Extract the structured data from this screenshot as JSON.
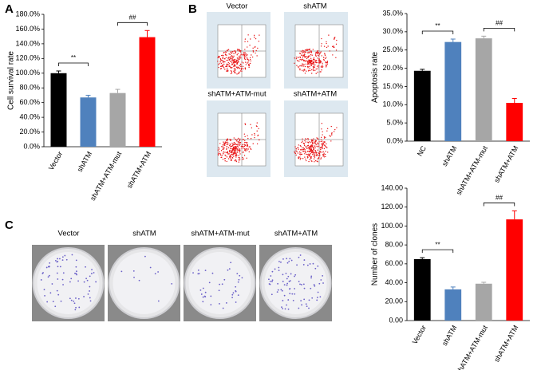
{
  "panel_labels": [
    "A",
    "B",
    "C"
  ],
  "flow_panels": {
    "titles": [
      "Vector",
      "shATM",
      "shATM+ATM-mut",
      "shATM+ATM"
    ]
  },
  "colony_plates": {
    "titles": [
      "Vector",
      "shATM",
      "shATM+ATM-mut",
      "shATM+ATM"
    ]
  },
  "chart_data": [
    {
      "type": "bar",
      "y_label": "Cell survival rate",
      "categories": [
        "Vector",
        "shATM",
        "shATM+ATM-mut",
        "shATM+ATM"
      ],
      "values": [
        100,
        67,
        73,
        149
      ],
      "errors": [
        3,
        3,
        5,
        9
      ],
      "colors": [
        "#000000",
        "#4f81bd",
        "#a6a6a6",
        "#ff0000"
      ],
      "ylim": [
        0,
        180
      ],
      "yticks": [
        {
          "value": 0,
          "label": "0.0%"
        },
        {
          "value": 20,
          "label": "20.0%"
        },
        {
          "value": 40,
          "label": "40.0%"
        },
        {
          "value": 60,
          "label": "60.0%"
        },
        {
          "value": 80,
          "label": "80.0%"
        },
        {
          "value": 100,
          "label": "100.0%"
        },
        {
          "value": 120,
          "label": "120.0%"
        },
        {
          "value": 140,
          "label": "140.0%"
        },
        {
          "value": 160,
          "label": "160.0%"
        },
        {
          "value": 180,
          "label": "180.0%"
        }
      ],
      "annotations": [
        "**",
        "##"
      ]
    },
    {
      "type": "bar",
      "y_label": "Apoptosis rate",
      "categories": [
        "NC",
        "shATM",
        "shATM+ATM-mut",
        "shATM+ATM"
      ],
      "values": [
        19.3,
        27.2,
        28.2,
        10.5
      ],
      "errors": [
        0.4,
        0.8,
        0.6,
        1.2
      ],
      "colors": [
        "#000000",
        "#4f81bd",
        "#a6a6a6",
        "#ff0000"
      ],
      "ylim": [
        0,
        35
      ],
      "yticks": [
        {
          "value": 0,
          "label": "0.0%"
        },
        {
          "value": 5,
          "label": "5.0%"
        },
        {
          "value": 10,
          "label": "10.0%"
        },
        {
          "value": 15,
          "label": "15.0%"
        },
        {
          "value": 20,
          "label": "20.0%"
        },
        {
          "value": 25,
          "label": "25.0%"
        },
        {
          "value": 30,
          "label": "30.0%"
        },
        {
          "value": 35,
          "label": "35.0%"
        }
      ],
      "annotations": [
        "**",
        "##"
      ]
    },
    {
      "type": "bar",
      "y_label": "Number of clones",
      "categories": [
        "Vector",
        "shATM",
        "shATM+ATM-mut",
        "shATM+ATM"
      ],
      "values": [
        65,
        33,
        39,
        107
      ],
      "errors": [
        1.5,
        2.5,
        1.5,
        9
      ],
      "colors": [
        "#000000",
        "#4f81bd",
        "#a6a6a6",
        "#ff0000"
      ],
      "ylim": [
        0,
        140
      ],
      "yticks": [
        {
          "value": 0,
          "label": "0.00"
        },
        {
          "value": 20,
          "label": "20.00"
        },
        {
          "value": 40,
          "label": "40.00"
        },
        {
          "value": 60,
          "label": "60.00"
        },
        {
          "value": 80,
          "label": "80.00"
        },
        {
          "value": 100,
          "label": "100.00"
        },
        {
          "value": 120,
          "label": "120.00"
        },
        {
          "value": 140,
          "label": "140.00"
        }
      ],
      "annotations": [
        "**",
        "##"
      ]
    }
  ]
}
